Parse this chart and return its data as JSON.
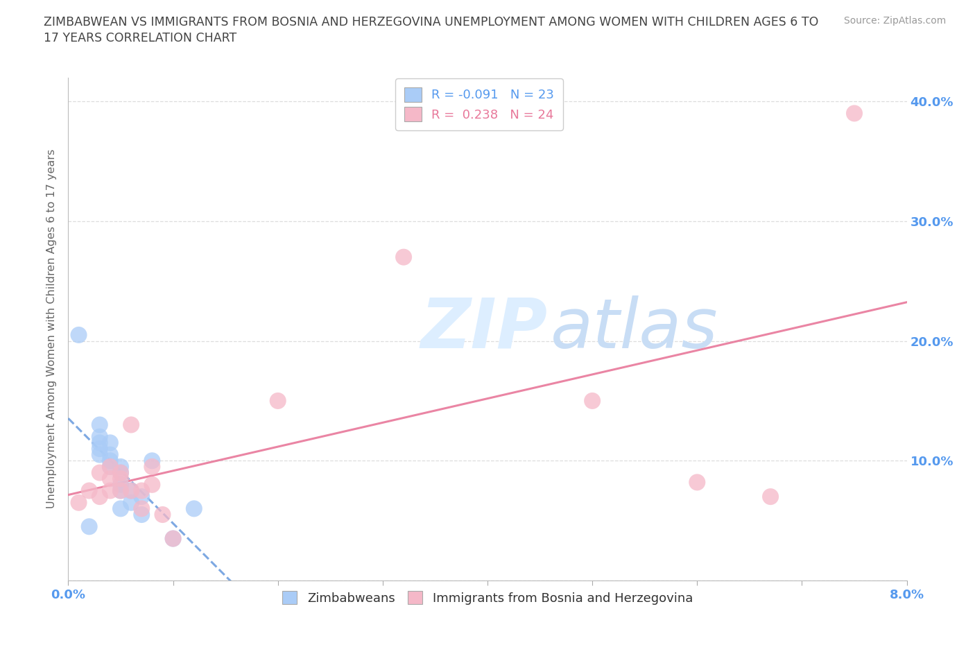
{
  "title_line1": "ZIMBABWEAN VS IMMIGRANTS FROM BOSNIA AND HERZEGOVINA UNEMPLOYMENT AMONG WOMEN WITH CHILDREN AGES 6 TO",
  "title_line2": "17 YEARS CORRELATION CHART",
  "source": "Source: ZipAtlas.com",
  "ylabel": "Unemployment Among Women with Children Ages 6 to 17 years",
  "xlim": [
    0.0,
    0.08
  ],
  "ylim": [
    0.0,
    0.42
  ],
  "xticks": [
    0.0,
    0.01,
    0.02,
    0.03,
    0.04,
    0.05,
    0.06,
    0.07,
    0.08
  ],
  "yticks": [
    0.0,
    0.1,
    0.2,
    0.3,
    0.4
  ],
  "ytick_labels": [
    "",
    "10.0%",
    "20.0%",
    "30.0%",
    "40.0%"
  ],
  "xtick_labels": [
    "0.0%",
    "",
    "",
    "",
    "",
    "",
    "",
    "",
    "8.0%"
  ],
  "blue_x": [
    0.001,
    0.002,
    0.003,
    0.003,
    0.003,
    0.003,
    0.003,
    0.004,
    0.004,
    0.004,
    0.004,
    0.005,
    0.005,
    0.005,
    0.005,
    0.005,
    0.006,
    0.006,
    0.007,
    0.007,
    0.008,
    0.01,
    0.012
  ],
  "blue_y": [
    0.205,
    0.045,
    0.105,
    0.11,
    0.115,
    0.12,
    0.13,
    0.095,
    0.1,
    0.105,
    0.115,
    0.06,
    0.075,
    0.08,
    0.09,
    0.095,
    0.065,
    0.075,
    0.055,
    0.07,
    0.1,
    0.035,
    0.06
  ],
  "pink_x": [
    0.001,
    0.002,
    0.003,
    0.003,
    0.004,
    0.004,
    0.004,
    0.005,
    0.005,
    0.005,
    0.006,
    0.006,
    0.007,
    0.007,
    0.008,
    0.008,
    0.009,
    0.01,
    0.02,
    0.032,
    0.05,
    0.06,
    0.067,
    0.075
  ],
  "pink_y": [
    0.065,
    0.075,
    0.07,
    0.09,
    0.075,
    0.085,
    0.095,
    0.075,
    0.085,
    0.09,
    0.075,
    0.13,
    0.06,
    0.075,
    0.08,
    0.095,
    0.055,
    0.035,
    0.15,
    0.27,
    0.15,
    0.082,
    0.07,
    0.39
  ],
  "blue_R": -0.091,
  "blue_N": 23,
  "pink_R": 0.238,
  "pink_N": 24,
  "blue_scatter_color": "#aaccf7",
  "pink_scatter_color": "#f5b8c8",
  "blue_line_color": "#6699dd",
  "pink_line_color": "#e8789a",
  "grid_color": "#dddddd",
  "background_color": "#ffffff",
  "title_color": "#444444",
  "tick_color": "#5599ee",
  "ylabel_color": "#666666",
  "source_color": "#999999",
  "legend_blue_text_color": "#5599ee",
  "legend_pink_text_color": "#e8789a",
  "watermark_zip_color": "#ddeeff",
  "watermark_atlas_color": "#c8ddf5"
}
